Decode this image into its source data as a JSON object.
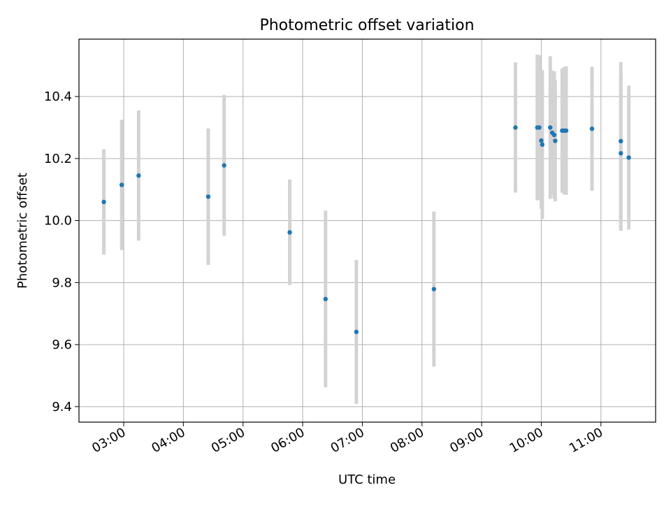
{
  "chart_data": {
    "type": "scatter",
    "title": "Photometric offset variation",
    "xlabel": "UTC time",
    "ylabel": "Photometric offset",
    "xlim": [
      "02:15",
      "11:55"
    ],
    "ylim": [
      9.35,
      10.585
    ],
    "grid": true,
    "x_ticks": [
      "03:00",
      "04:00",
      "05:00",
      "06:00",
      "07:00",
      "08:00",
      "09:00",
      "10:00",
      "11:00"
    ],
    "y_ticks": [
      "9.4",
      "9.6",
      "9.8",
      "10.0",
      "10.2",
      "10.4"
    ],
    "point_color": "#1f77b4",
    "errorbar_color": "#d3d3d3",
    "points": [
      {
        "time": "02:40",
        "y": 10.06,
        "err": 0.17
      },
      {
        "time": "02:58",
        "y": 10.115,
        "err": 0.21
      },
      {
        "time": "03:15",
        "y": 10.145,
        "err": 0.21
      },
      {
        "time": "04:25",
        "y": 10.077,
        "err": 0.22
      },
      {
        "time": "04:41",
        "y": 10.178,
        "err": 0.227
      },
      {
        "time": "05:47",
        "y": 9.962,
        "err": 0.17
      },
      {
        "time": "06:23",
        "y": 9.747,
        "err": 0.285
      },
      {
        "time": "06:54",
        "y": 9.641,
        "err": 0.232
      },
      {
        "time": "08:12",
        "y": 9.779,
        "err": 0.25
      },
      {
        "time": "09:34",
        "y": 10.3,
        "err": 0.21
      },
      {
        "time": "09:56",
        "y": 10.3,
        "err": 0.235
      },
      {
        "time": "09:58",
        "y": 10.3,
        "err": 0.233
      },
      {
        "time": "10:00",
        "y": 10.258,
        "err": 0.22
      },
      {
        "time": "10:01",
        "y": 10.245,
        "err": 0.24
      },
      {
        "time": "10:09",
        "y": 10.3,
        "err": 0.23
      },
      {
        "time": "10:11",
        "y": 10.283,
        "err": 0.2
      },
      {
        "time": "10:13",
        "y": 10.276,
        "err": 0.205
      },
      {
        "time": "10:14",
        "y": 10.257,
        "err": 0.195
      },
      {
        "time": "10:21",
        "y": 10.29,
        "err": 0.2
      },
      {
        "time": "10:23",
        "y": 10.29,
        "err": 0.205
      },
      {
        "time": "10:25",
        "y": 10.29,
        "err": 0.207
      },
      {
        "time": "10:51",
        "y": 10.296,
        "err": 0.2
      },
      {
        "time": "11:20",
        "y": 10.256,
        "err": 0.255
      },
      {
        "time": "11:20",
        "y": 10.217,
        "err": 0.25
      },
      {
        "time": "11:28",
        "y": 10.203,
        "err": 0.232
      }
    ]
  }
}
